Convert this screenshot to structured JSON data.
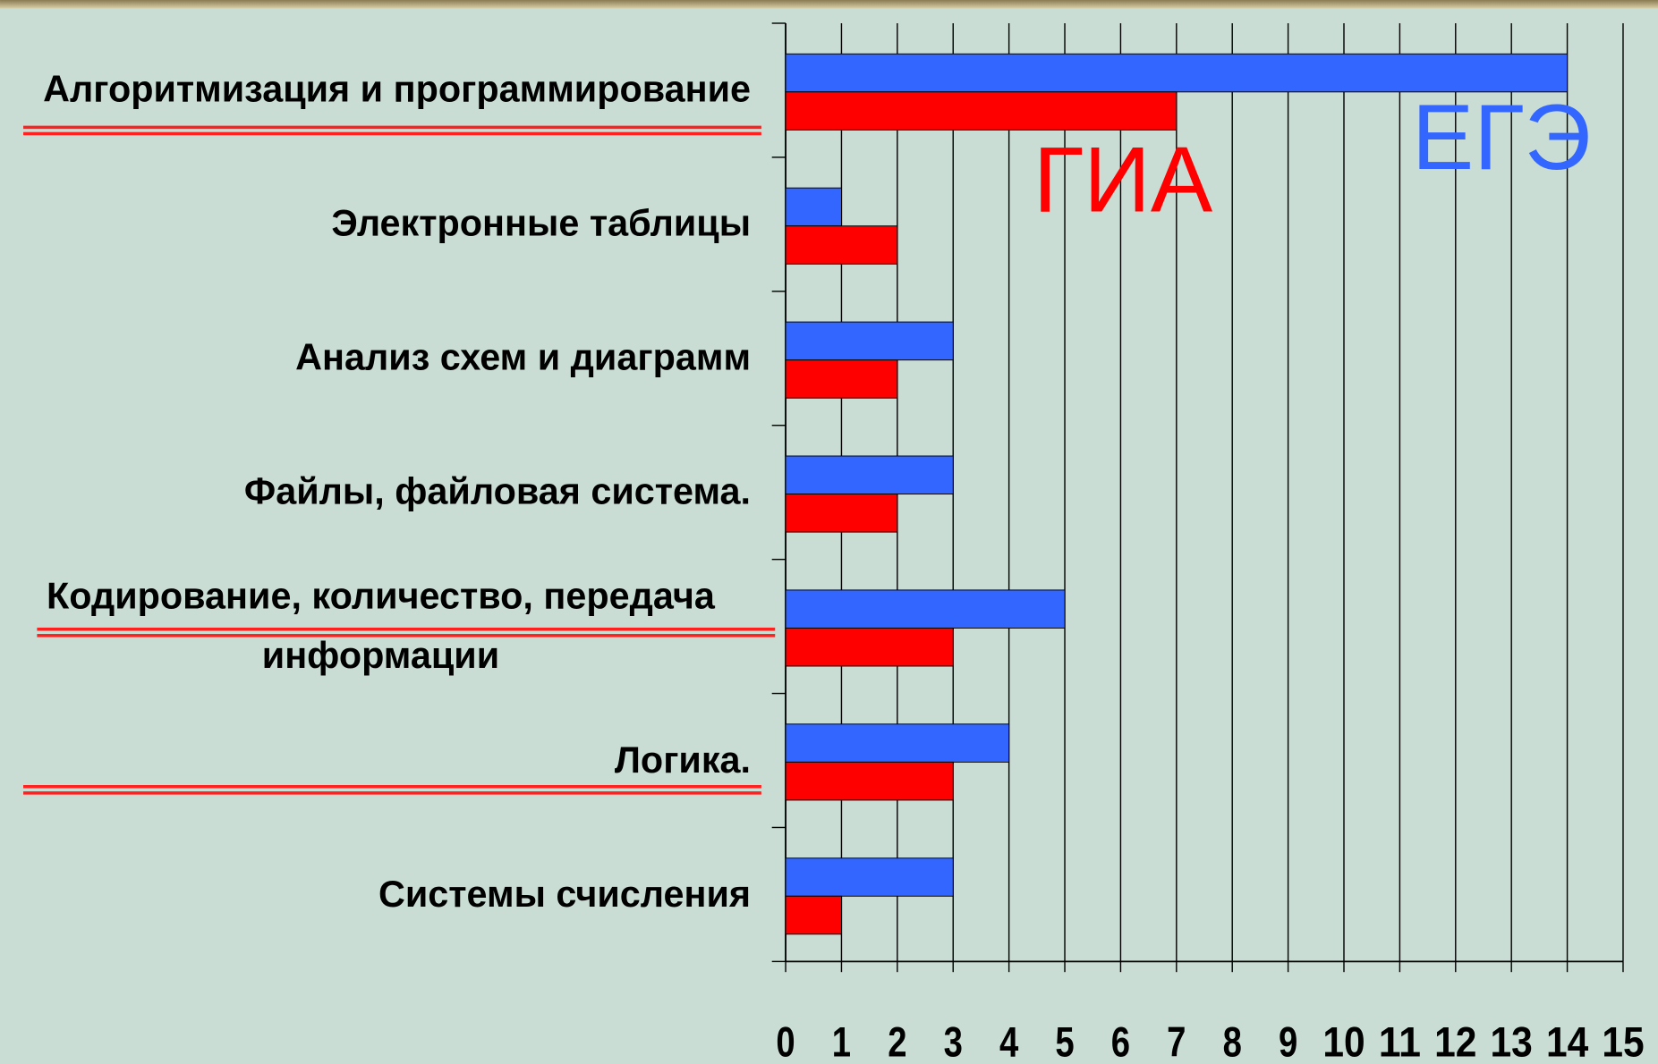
{
  "chart_data": {
    "type": "bar",
    "orientation": "horizontal",
    "categories": [
      "Алгоритмизация и программирование",
      "Электронные таблицы",
      "Анализ схем и диаграмм",
      "Файлы, файловая система.",
      "Кодирование, количество, передача информации",
      "Логика.",
      "Системы счисления"
    ],
    "series": [
      {
        "name": "ЕГЭ",
        "color": "#3366ff",
        "values": [
          14,
          1,
          3,
          3,
          5,
          4,
          3
        ]
      },
      {
        "name": "ГИА",
        "color": "#ff0000",
        "values": [
          7,
          2,
          2,
          2,
          3,
          3,
          1
        ]
      }
    ],
    "xlim": [
      0,
      15
    ],
    "xticks": [
      0,
      1,
      2,
      3,
      4,
      5,
      6,
      7,
      8,
      9,
      10,
      11,
      12,
      13,
      14,
      15
    ],
    "grid": true
  }
}
